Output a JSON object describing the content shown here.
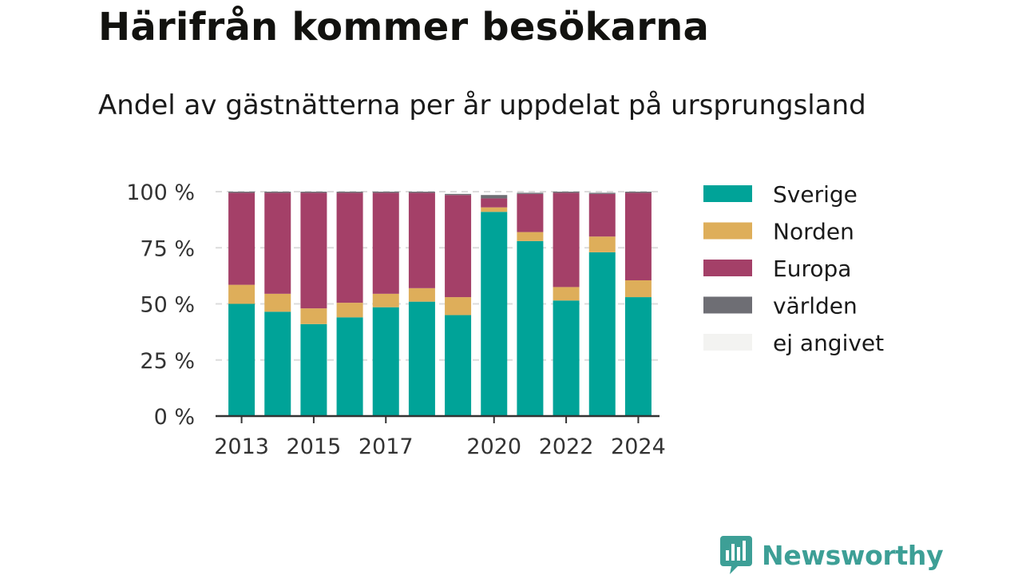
{
  "header": {
    "title": "Härifrån kommer besökarna",
    "subtitle": "Andel av gästnätterna per år uppdelat på ursprungsland"
  },
  "logo": {
    "text": "Newsworthy",
    "icon": "bar-chart-icon",
    "color": "#3d9f96"
  },
  "chart_data": {
    "type": "bar",
    "stacked": true,
    "title": "Härifrån kommer besökarna",
    "subtitle": "Andel av gästnätterna per år uppdelat på ursprungsland",
    "xlabel": "",
    "ylabel": "",
    "ylim": [
      0,
      100
    ],
    "grid": true,
    "legend_position": "right",
    "categories": [
      "2013",
      "2014",
      "2015",
      "2016",
      "2017",
      "2018",
      "2019",
      "2020",
      "2021",
      "2022",
      "2023",
      "2024"
    ],
    "x_tick_labels": [
      "2013",
      "2015",
      "2017",
      "2020",
      "2022",
      "2024"
    ],
    "y_tick_labels": [
      "0 %",
      "25 %",
      "50 %",
      "75 %",
      "100 %"
    ],
    "y_ticks": [
      0,
      25,
      50,
      75,
      100
    ],
    "series": [
      {
        "name": "Sverige",
        "color": "#00a398",
        "values": [
          50,
          46.5,
          41,
          44,
          48.5,
          51,
          45,
          91,
          78,
          51.5,
          73,
          53
        ]
      },
      {
        "name": "Norden",
        "color": "#deae5a",
        "values": [
          8.5,
          8,
          7,
          6.5,
          6,
          6,
          8,
          2,
          4,
          6,
          7,
          7.5
        ]
      },
      {
        "name": "Europa",
        "color": "#a44068",
        "values": [
          41,
          45,
          51.5,
          49,
          45,
          42.5,
          45.5,
          4,
          17,
          42,
          19,
          39
        ]
      },
      {
        "name": "världen",
        "color": "#6e6e74",
        "values": [
          0.5,
          0.5,
          0.5,
          0.5,
          0.5,
          0.5,
          0.5,
          1.5,
          0.5,
          0.5,
          0.5,
          0.5
        ]
      },
      {
        "name": "ej angivet",
        "color": "#f3f3f1",
        "values": [
          0,
          0,
          0,
          0,
          0,
          0,
          0,
          0,
          0,
          0,
          0,
          0
        ]
      }
    ]
  }
}
